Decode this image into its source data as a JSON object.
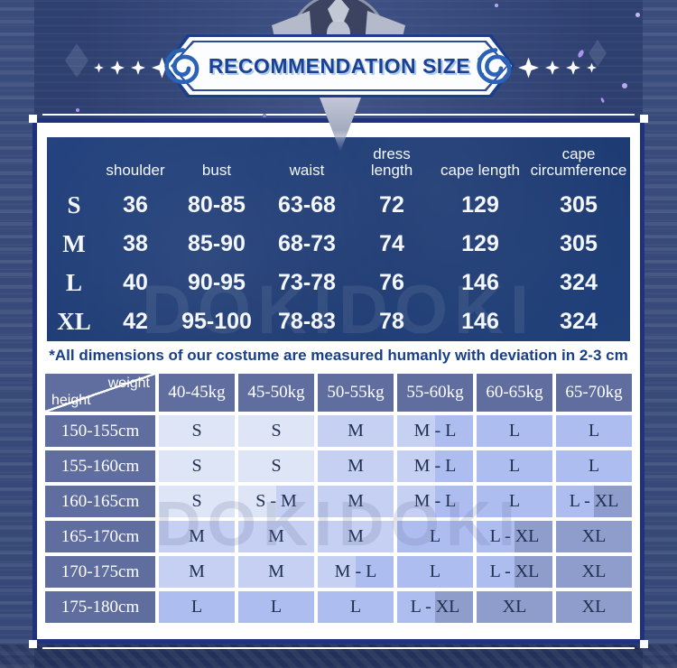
{
  "banner": {
    "title": "RECOMMENDATION SIZE"
  },
  "note": "*All dimensions of our costume are measured humanly with deviation in 2-3 cm",
  "watermark": "DOKIDOKI",
  "colors": {
    "accent_navy": "#173f8a",
    "panel_border": "#1e3280",
    "table_bg": "#1e3b76",
    "slate_header": "#5f6e9e",
    "cell_text": "#20304f",
    "swirl_blue": "#2b62b5",
    "size_S": "#dee5f7",
    "size_M": "#c6d0f3",
    "size_L": "#aebdf0",
    "size_XL": "#8e9dcb"
  },
  "chart_data": [
    {
      "type": "table",
      "columns": [
        "shoulder",
        "bust",
        "waist",
        "dress length",
        "cape length",
        "cape circumference"
      ],
      "rows": [
        {
          "size": "S",
          "values": [
            "36",
            "80-85",
            "63-68",
            "72",
            "129",
            "305"
          ]
        },
        {
          "size": "M",
          "values": [
            "38",
            "85-90",
            "68-73",
            "74",
            "129",
            "305"
          ]
        },
        {
          "size": "L",
          "values": [
            "40",
            "90-95",
            "73-78",
            "76",
            "146",
            "324"
          ]
        },
        {
          "size": "XL",
          "values": [
            "42",
            "95-100",
            "78-83",
            "78",
            "146",
            "324"
          ]
        }
      ]
    },
    {
      "type": "table",
      "corner": {
        "top_label": "weight",
        "bottom_label": "height"
      },
      "columns": [
        "40-45kg",
        "45-50kg",
        "50-55kg",
        "55-60kg",
        "60-65kg",
        "65-70kg"
      ],
      "rows": [
        {
          "height": "150-155cm",
          "cells": [
            "S",
            "S",
            "M",
            "M - L",
            "L",
            "L"
          ]
        },
        {
          "height": "155-160cm",
          "cells": [
            "S",
            "S",
            "M",
            "M - L",
            "L",
            "L"
          ]
        },
        {
          "height": "160-165cm",
          "cells": [
            "S",
            "S - M",
            "M",
            "M - L",
            "L",
            "L - XL"
          ]
        },
        {
          "height": "165-170cm",
          "cells": [
            "M",
            "M",
            "M",
            "L",
            "L - XL",
            "XL"
          ]
        },
        {
          "height": "170-175cm",
          "cells": [
            "M",
            "M",
            "M - L",
            "L",
            "L - XL",
            "XL"
          ]
        },
        {
          "height": "175-180cm",
          "cells": [
            "L",
            "L",
            "L",
            "L - XL",
            "XL",
            "XL"
          ]
        }
      ]
    }
  ]
}
